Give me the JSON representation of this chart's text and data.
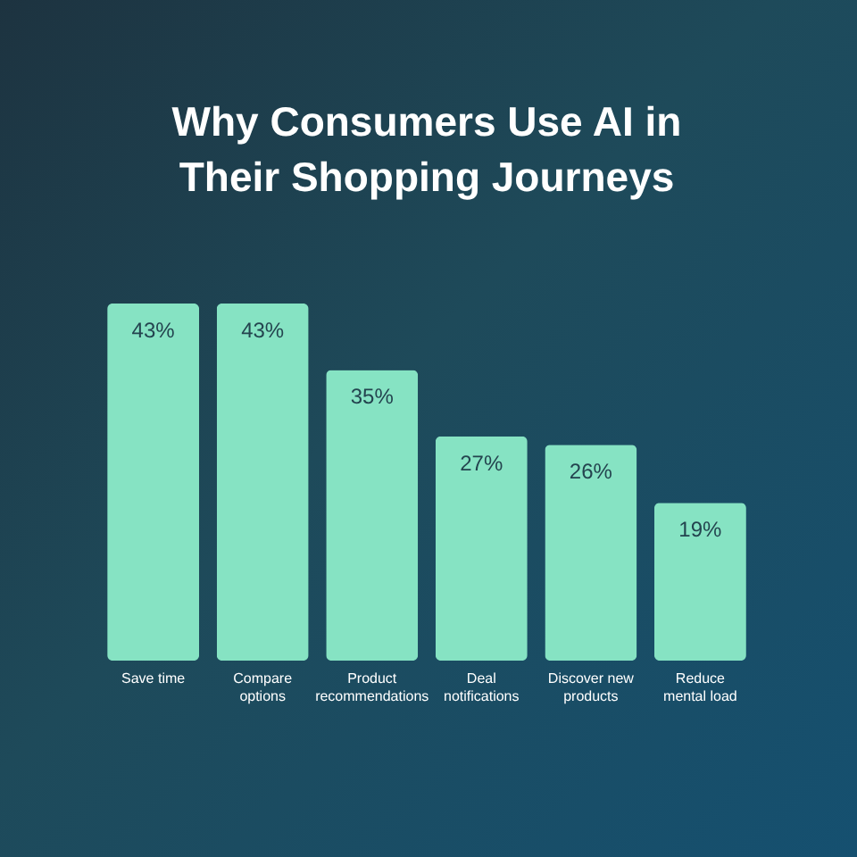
{
  "chart_data": {
    "type": "bar",
    "title": "Why Consumers Use AI in Their Shopping Journeys",
    "categories": [
      "Save time",
      "Compare options",
      "Product recommendations",
      "Deal notifications",
      "Discover new products",
      "Reduce mental load"
    ],
    "values": [
      43,
      43,
      35,
      27,
      26,
      19
    ],
    "color": "#86e3c3",
    "value_labels": [
      "43%",
      "43%",
      "35%",
      "27%",
      "26%",
      "19%"
    ]
  }
}
